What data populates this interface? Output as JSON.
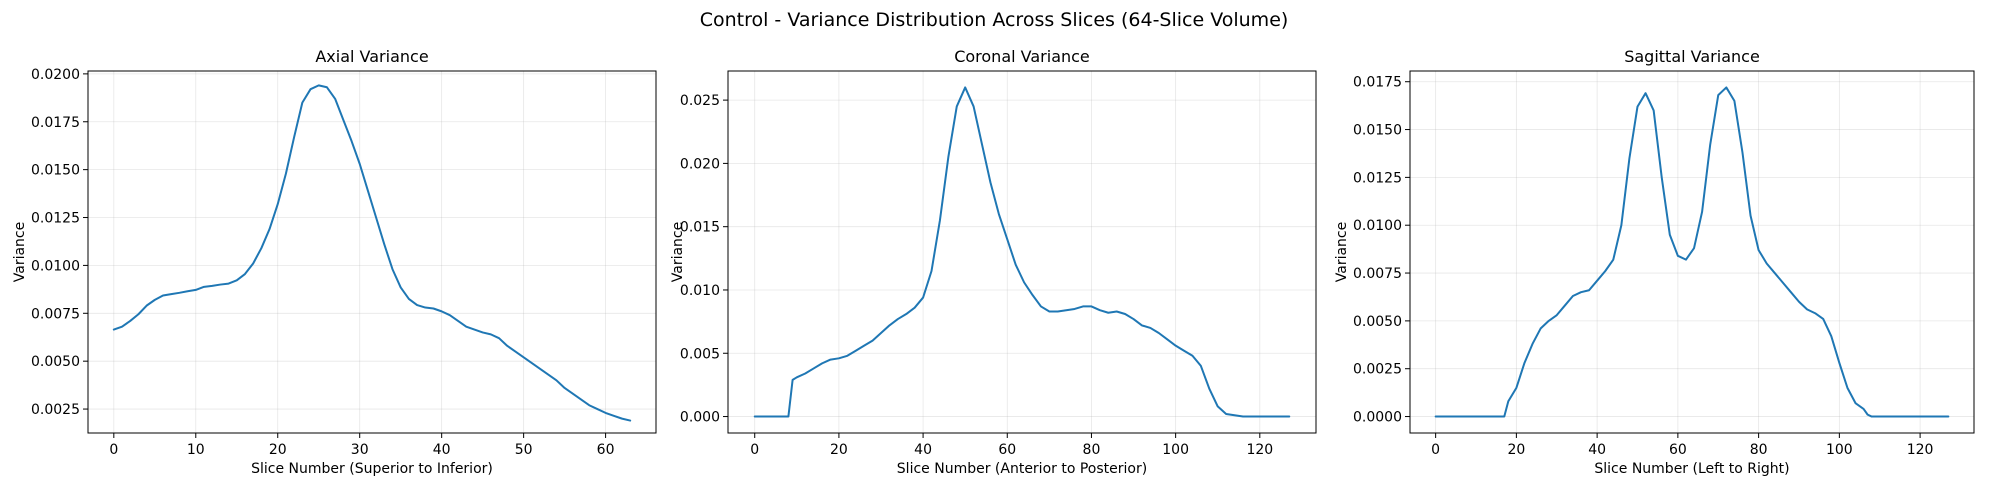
{
  "figure": {
    "suptitle": "Control - Variance Distribution Across Slices (64-Slice Volume)"
  },
  "chart_data": [
    {
      "type": "line",
      "title": "Axial Variance",
      "xlabel": "Slice Number (Superior to Inferior)",
      "ylabel": "Variance",
      "xlim": [
        -3.15,
        66.15
      ],
      "ylim": [
        0.00125,
        0.02015
      ],
      "xticks": [
        0,
        10,
        20,
        30,
        40,
        50,
        60
      ],
      "xtick_labels": [
        "0",
        "10",
        "20",
        "30",
        "40",
        "50",
        "60"
      ],
      "yticks": [
        0.0025,
        0.005,
        0.0075,
        0.01,
        0.0125,
        0.015,
        0.0175,
        0.02
      ],
      "ytick_labels": [
        "0.0025",
        "0.0050",
        "0.0075",
        "0.0100",
        "0.0125",
        "0.0150",
        "0.0175",
        "0.0200"
      ],
      "grid": true,
      "color": "#1f77b4",
      "x": [
        0,
        1,
        2,
        3,
        4,
        5,
        6,
        7,
        8,
        9,
        10,
        11,
        12,
        13,
        14,
        15,
        16,
        17,
        18,
        19,
        20,
        21,
        22,
        23,
        24,
        25,
        26,
        27,
        28,
        29,
        30,
        31,
        32,
        33,
        34,
        35,
        36,
        37,
        38,
        39,
        40,
        41,
        42,
        43,
        44,
        45,
        46,
        47,
        48,
        49,
        50,
        51,
        52,
        53,
        54,
        55,
        56,
        57,
        58,
        59,
        60,
        61,
        62,
        63
      ],
      "y": [
        0.00665,
        0.0068,
        0.0071,
        0.00745,
        0.0079,
        0.0082,
        0.00843,
        0.0085,
        0.00857,
        0.00865,
        0.00872,
        0.00888,
        0.00893,
        0.009,
        0.00905,
        0.00922,
        0.00955,
        0.0101,
        0.0109,
        0.0119,
        0.0132,
        0.0148,
        0.0167,
        0.0185,
        0.0192,
        0.0194,
        0.0193,
        0.0187,
        0.0176,
        0.0165,
        0.0153,
        0.0139,
        0.0125,
        0.0111,
        0.0098,
        0.00885,
        0.00825,
        0.00793,
        0.0078,
        0.00775,
        0.0076,
        0.0074,
        0.0071,
        0.0068,
        0.00665,
        0.0065,
        0.0064,
        0.0062,
        0.0058,
        0.0055,
        0.0052,
        0.0049,
        0.0046,
        0.0043,
        0.004,
        0.0036,
        0.0033,
        0.003,
        0.0027,
        0.0025,
        0.0023,
        0.00215,
        0.002,
        0.0019
      ]
    },
    {
      "type": "line",
      "title": "Coronal Variance",
      "xlabel": "Slice Number (Anterior to Posterior)",
      "ylabel": "Variance",
      "xlim": [
        -6.35,
        133.35
      ],
      "ylim": [
        -0.0013,
        0.0273
      ],
      "xticks": [
        0,
        20,
        40,
        60,
        80,
        100,
        120
      ],
      "xtick_labels": [
        "0",
        "20",
        "40",
        "60",
        "80",
        "100",
        "120"
      ],
      "yticks": [
        0,
        0.005,
        0.01,
        0.015,
        0.02,
        0.025
      ],
      "ytick_labels": [
        "0.000",
        "0.005",
        "0.010",
        "0.015",
        "0.020",
        "0.025"
      ],
      "grid": true,
      "color": "#1f77b4",
      "x": [
        0,
        2,
        4,
        6,
        8,
        9,
        10,
        12,
        14,
        16,
        18,
        20,
        22,
        24,
        26,
        28,
        30,
        32,
        34,
        36,
        38,
        40,
        42,
        44,
        46,
        48,
        50,
        52,
        54,
        56,
        58,
        60,
        62,
        64,
        66,
        68,
        70,
        72,
        74,
        76,
        78,
        80,
        82,
        84,
        86,
        88,
        90,
        92,
        94,
        96,
        98,
        100,
        102,
        104,
        106,
        108,
        110,
        112,
        114,
        116,
        118,
        120,
        122,
        124,
        126,
        127
      ],
      "y": [
        0,
        0,
        0,
        0,
        0,
        0.0029,
        0.0031,
        0.0034,
        0.0038,
        0.0042,
        0.0045,
        0.0046,
        0.0048,
        0.0052,
        0.0056,
        0.006,
        0.0066,
        0.0072,
        0.0077,
        0.0081,
        0.0086,
        0.0094,
        0.0115,
        0.0155,
        0.0205,
        0.0245,
        0.026,
        0.0245,
        0.0215,
        0.0185,
        0.016,
        0.014,
        0.012,
        0.0106,
        0.0096,
        0.0087,
        0.0083,
        0.0083,
        0.0084,
        0.0085,
        0.0087,
        0.0087,
        0.0084,
        0.0082,
        0.0083,
        0.0081,
        0.0077,
        0.0072,
        0.007,
        0.0066,
        0.0061,
        0.0056,
        0.0052,
        0.0048,
        0.004,
        0.0022,
        0.0008,
        0.0002,
        0.0001,
        0,
        0,
        0,
        0,
        0,
        0,
        0
      ]
    },
    {
      "type": "line",
      "title": "Sagittal Variance",
      "xlabel": "Slice Number (Left to Right)",
      "ylabel": "Variance",
      "xlim": [
        -6.35,
        133.35
      ],
      "ylim": [
        -0.00086,
        0.01806
      ],
      "xticks": [
        0,
        20,
        40,
        60,
        80,
        100,
        120
      ],
      "xtick_labels": [
        "0",
        "20",
        "40",
        "60",
        "80",
        "100",
        "120"
      ],
      "yticks": [
        0,
        0.0025,
        0.005,
        0.0075,
        0.01,
        0.0125,
        0.015,
        0.0175
      ],
      "ytick_labels": [
        "0.0000",
        "0.0025",
        "0.0050",
        "0.0075",
        "0.0100",
        "0.0125",
        "0.0150",
        "0.0175"
      ],
      "grid": true,
      "color": "#1f77b4",
      "x": [
        0,
        5,
        10,
        15,
        17,
        18,
        20,
        22,
        24,
        26,
        28,
        30,
        32,
        34,
        36,
        38,
        40,
        42,
        44,
        46,
        48,
        50,
        52,
        54,
        56,
        58,
        60,
        62,
        64,
        66,
        68,
        70,
        72,
        74,
        76,
        78,
        80,
        82,
        84,
        86,
        88,
        90,
        92,
        94,
        96,
        98,
        100,
        102,
        104,
        106,
        107,
        108,
        110,
        115,
        120,
        127
      ],
      "y": [
        0,
        0,
        0,
        0,
        0,
        0.0008,
        0.0015,
        0.0028,
        0.0038,
        0.0046,
        0.005,
        0.0053,
        0.0058,
        0.0063,
        0.0065,
        0.0066,
        0.0071,
        0.0076,
        0.0082,
        0.01,
        0.0135,
        0.0162,
        0.0169,
        0.016,
        0.0125,
        0.0095,
        0.0084,
        0.0082,
        0.0088,
        0.0107,
        0.0142,
        0.0168,
        0.0172,
        0.0165,
        0.0138,
        0.0105,
        0.0087,
        0.008,
        0.0075,
        0.007,
        0.0065,
        0.006,
        0.0056,
        0.0054,
        0.0051,
        0.0042,
        0.0028,
        0.0015,
        0.0007,
        0.0004,
        0.0001,
        0,
        0,
        0,
        0,
        0
      ]
    }
  ]
}
